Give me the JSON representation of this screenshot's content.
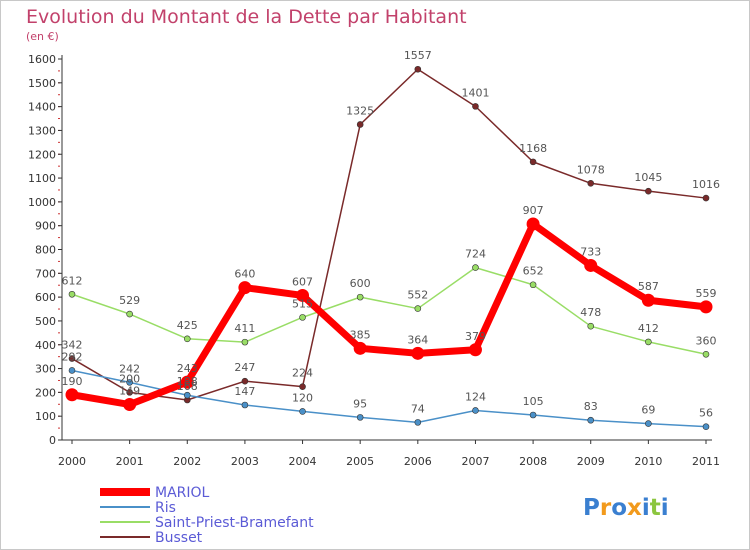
{
  "chart_data": {
    "type": "line",
    "title": "Evolution du Montant de la Dette par Habitant",
    "subtitle": "(en €)",
    "xlabel": "",
    "ylabel": "",
    "categories": [
      "2000",
      "2001",
      "2002",
      "2003",
      "2004",
      "2005",
      "2006",
      "2007",
      "2008",
      "2009",
      "2010",
      "2011"
    ],
    "ylim": [
      0,
      1600
    ],
    "yticks": [
      "0",
      "100",
      "200",
      "300",
      "400",
      "500",
      "600",
      "700",
      "800",
      "900",
      "1000",
      "1100",
      "1200",
      "1300",
      "1400",
      "1500",
      "1600"
    ],
    "grid": false,
    "legend_position": "bottom-left",
    "series": [
      {
        "name": "MARIOL",
        "color": "#ff0000",
        "values": [
          190,
          149,
          243,
          640,
          607,
          385,
          364,
          379,
          907,
          733,
          587,
          559
        ],
        "labels": [
          "190",
          "149",
          "243",
          "640",
          "607",
          "385",
          "364",
          "379",
          "907",
          "733",
          "587",
          "559"
        ]
      },
      {
        "name": "Ris",
        "color": "#4a90c8",
        "values": [
          292,
          242,
          188,
          147,
          120,
          95,
          74,
          124,
          105,
          83,
          69,
          56
        ],
        "labels": [
          "292",
          "242",
          "188",
          "147",
          "120",
          "95",
          "74",
          "124",
          "105",
          "83",
          "69",
          "56"
        ]
      },
      {
        "name": "Saint-Priest-Bramefant",
        "color": "#99dd66",
        "values": [
          612,
          529,
          425,
          411,
          515,
          600,
          552,
          724,
          652,
          478,
          412,
          360
        ],
        "labels": [
          "612",
          "529",
          "425",
          "411",
          "515",
          "600",
          "552",
          "724",
          "652",
          "478",
          "412",
          "360"
        ]
      },
      {
        "name": "Busset",
        "color": "#7a2a2a",
        "values": [
          342,
          200,
          168,
          247,
          224,
          1325,
          1557,
          1401,
          1168,
          1078,
          1045,
          1016
        ],
        "labels": [
          "342",
          "200",
          "168",
          "247",
          "224",
          "1325",
          "1557",
          "1401",
          "1168",
          "1078",
          "1045",
          "1016"
        ]
      }
    ]
  },
  "logo": {
    "text": "Proxiti"
  },
  "colors": {
    "title": "#c2416b",
    "axis": "#333333",
    "axis_tick_marks": "#cc3333",
    "legend_text": "#5b5bd6",
    "logo_letters": [
      "#3a7fd0",
      "#f29a1c",
      "#3a7fd0",
      "#f29a1c",
      "#3a7fd0",
      "#8cc63f",
      "#3a7fd0"
    ]
  }
}
